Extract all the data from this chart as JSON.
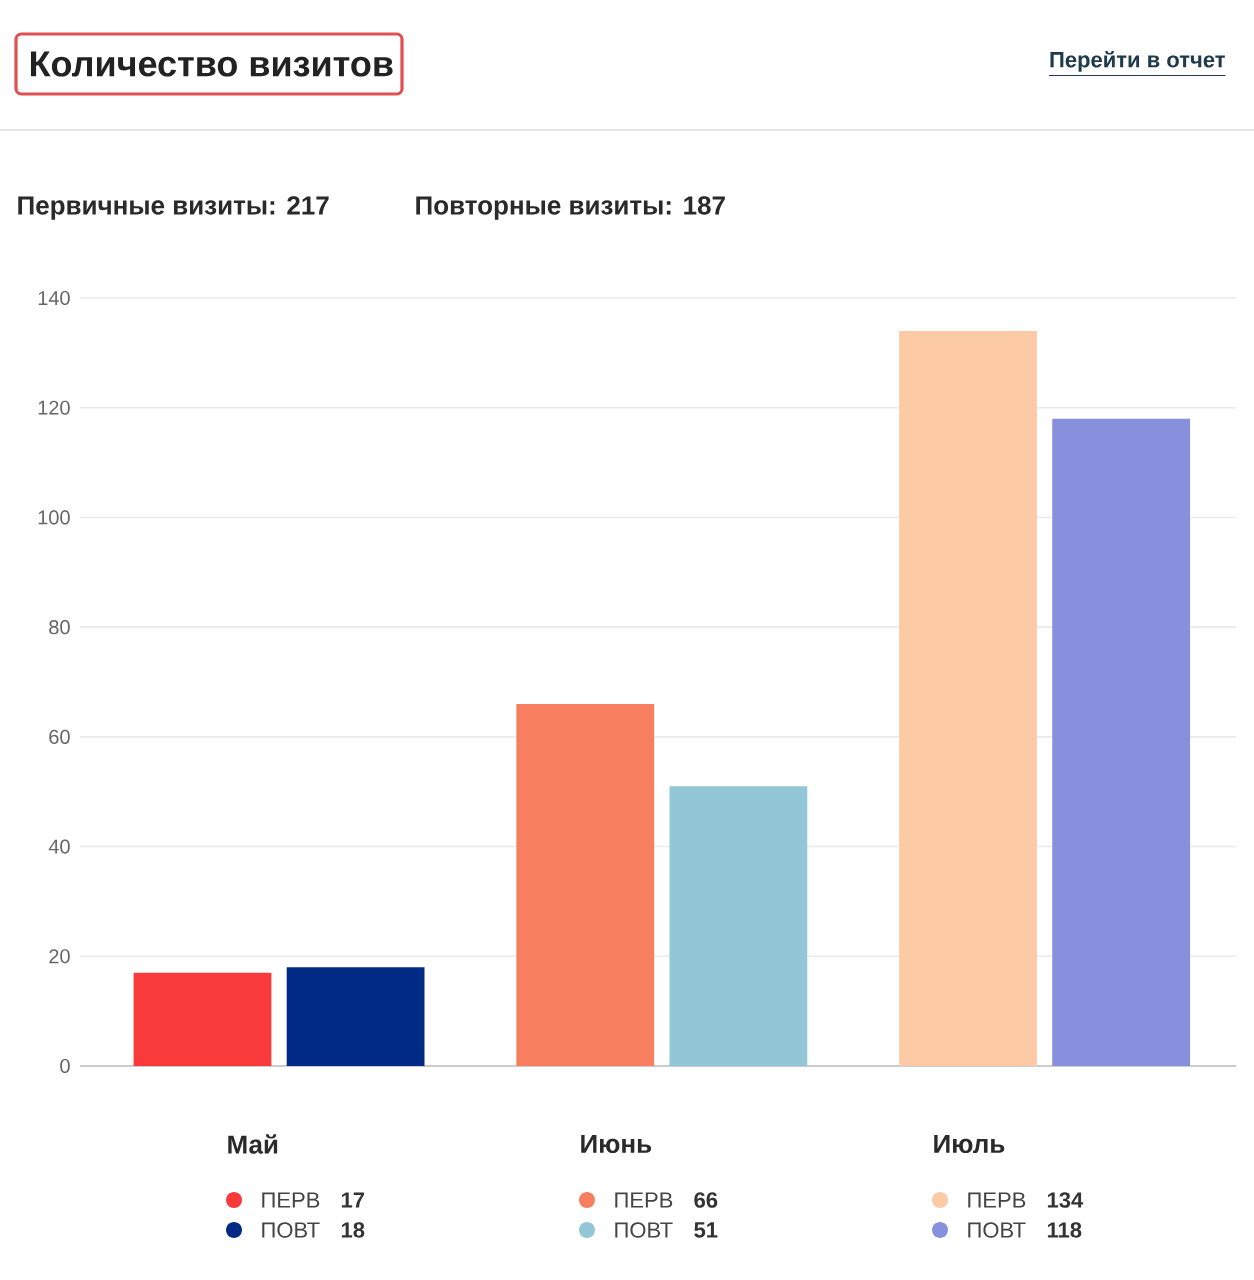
{
  "chart_data": {
    "type": "bar",
    "title": "Количество визитов",
    "annotations": [
      "Перейти в отчет",
      "Первичные визиты: 217",
      "Повторные визиты: 187"
    ],
    "categories": [
      "Май",
      "Июнь",
      "Июль"
    ],
    "series": [
      {
        "name": "ПЕРВ",
        "colors": [
          "#f93a3a",
          "#f77f5f",
          "#fdcaa6"
        ],
        "values": [
          17,
          66,
          134
        ]
      },
      {
        "name": "ПОВТ",
        "colors": [
          "#002a86",
          "#93c6d6",
          "#8790dc"
        ],
        "values": [
          18,
          51,
          118
        ]
      }
    ],
    "ylim": [
      0,
      140
    ],
    "yticks": [
      0,
      20,
      40,
      60,
      80,
      100,
      120,
      140
    ],
    "grid": "y",
    "legend": "bottom",
    "data_labels": true
  }
}
